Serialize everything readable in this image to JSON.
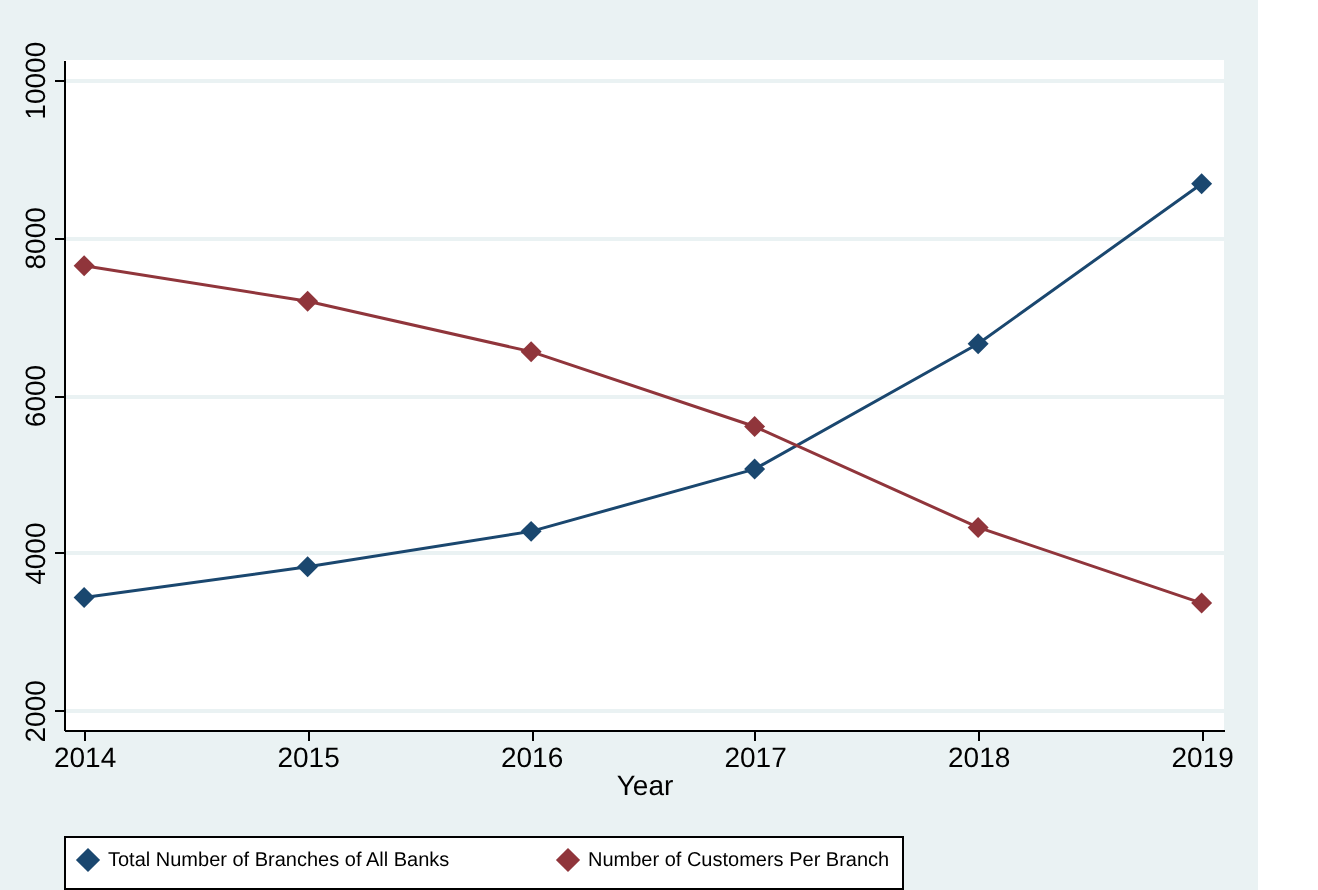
{
  "chart_data": {
    "type": "line",
    "xlabel": "Year",
    "x": [
      2014,
      2015,
      2016,
      2017,
      2018,
      2019
    ],
    "series": [
      {
        "name": "Total Number of Branches of All Banks",
        "color": "#1a476f",
        "values": [
          3430,
          3820,
          4270,
          5060,
          6650,
          8680
        ]
      },
      {
        "name": "Number of Customers Per Branch",
        "color": "#90353b",
        "values": [
          7640,
          7190,
          6550,
          5600,
          4320,
          3360
        ]
      }
    ],
    "xlim": [
      2013.91,
      2019.1
    ],
    "xticks": [
      2014,
      2015,
      2016,
      2017,
      2018,
      2019
    ],
    "ylim": [
      1750,
      10250
    ],
    "yticks": [
      2000,
      4000,
      6000,
      8000,
      10000
    ],
    "grid": "y",
    "legend": "bottom",
    "marker": "diamond",
    "line_style": "solid"
  }
}
